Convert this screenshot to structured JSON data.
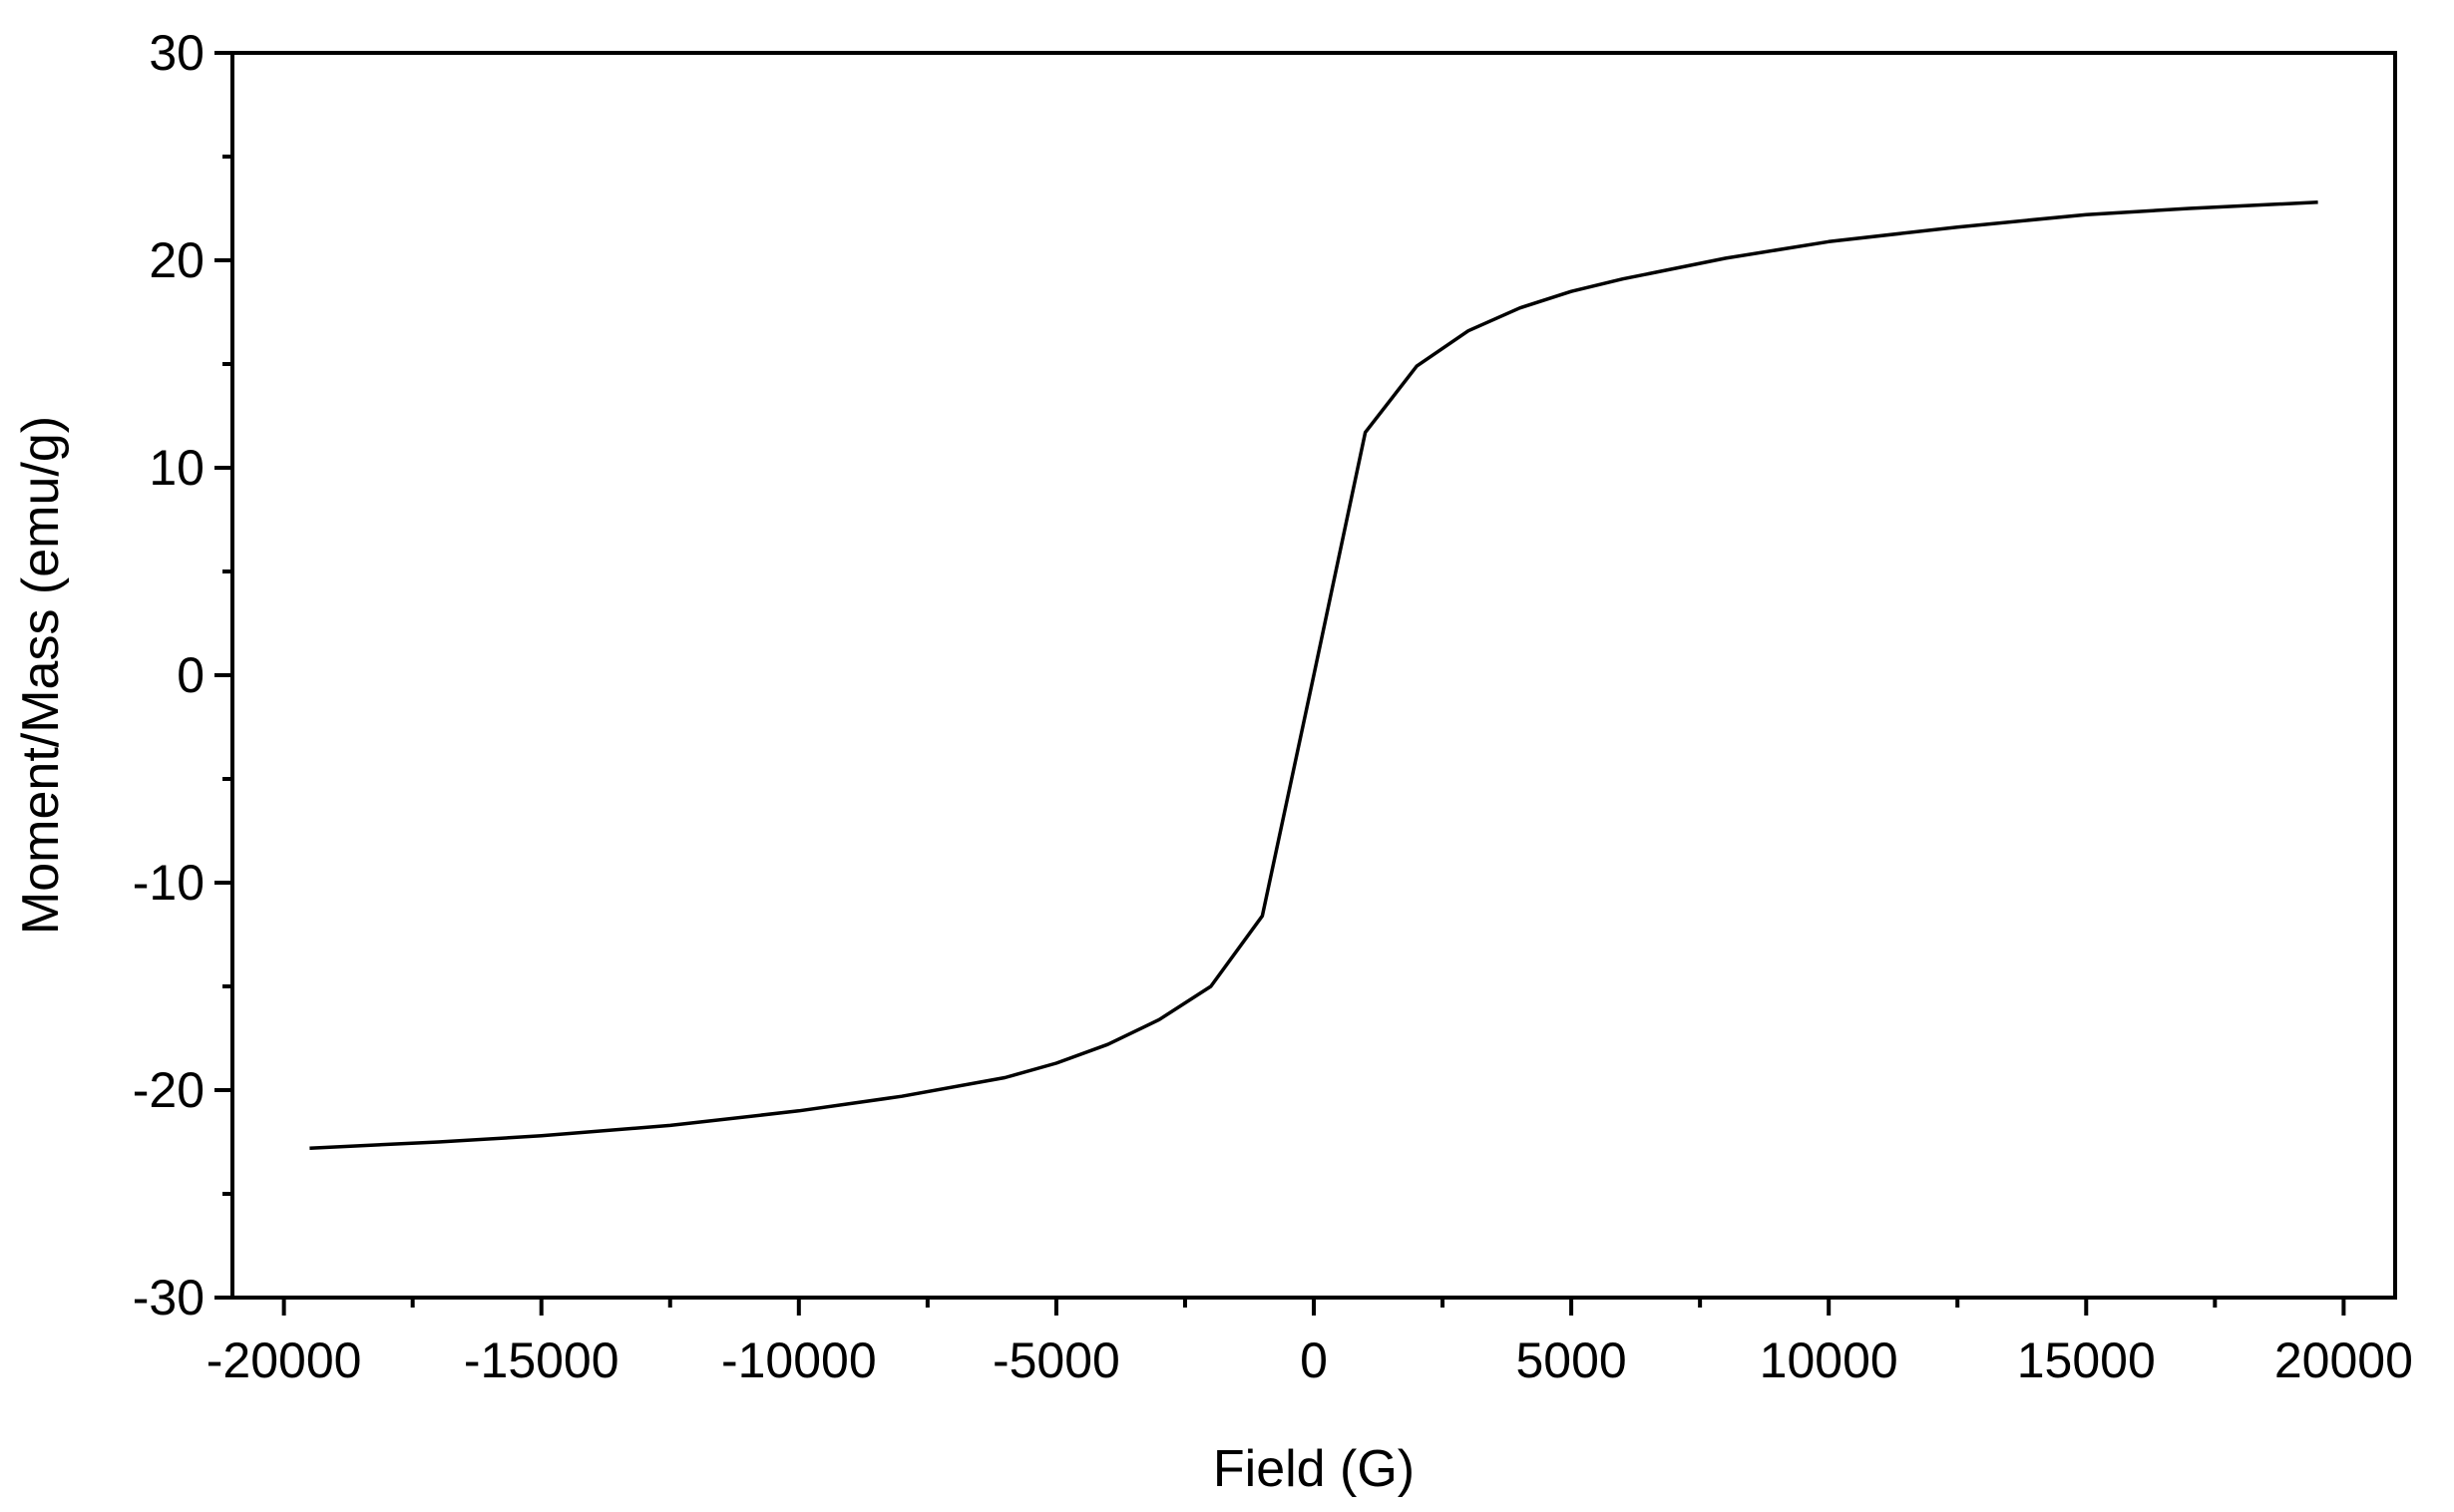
{
  "chart_data": {
    "type": "line",
    "xlabel": "Field (G)",
    "ylabel": "Moment/Mass (emu/g)",
    "xlim": [
      -21000,
      21000
    ],
    "ylim": [
      -30,
      30
    ],
    "x_ticks": [
      -20000,
      -15000,
      -10000,
      -5000,
      0,
      5000,
      10000,
      15000,
      20000
    ],
    "x_tick_labels": [
      "-20000",
      "-15000",
      "-10000",
      "-5000",
      "0",
      "5000",
      "10000",
      "15000",
      "20000"
    ],
    "y_ticks": [
      -30,
      -20,
      -10,
      0,
      10,
      20,
      30
    ],
    "y_tick_labels": [
      "-30",
      "-20",
      "-10",
      "0",
      "10",
      "20",
      "30"
    ],
    "x_minor_step": 2500,
    "y_minor_step": 5,
    "grid": false,
    "line_color": "#000000",
    "series": [
      {
        "x": [
          -19500,
          -17000,
          -15000,
          -12500,
          -10000,
          -8000,
          -6000,
          -5000,
          -4000,
          -3000,
          -2000,
          -1000,
          0,
          1000,
          2000,
          3000,
          4000,
          5000,
          6000,
          8000,
          10000,
          12500,
          15000,
          17000,
          19500
        ],
        "y": [
          -22.8,
          -22.5,
          -22.2,
          -21.7,
          -21.0,
          -20.3,
          -19.4,
          -18.7,
          -17.8,
          -16.6,
          -15.0,
          -11.6,
          0,
          11.7,
          14.9,
          16.6,
          17.7,
          18.5,
          19.1,
          20.1,
          20.9,
          21.6,
          22.2,
          22.5,
          22.8
        ]
      }
    ]
  }
}
